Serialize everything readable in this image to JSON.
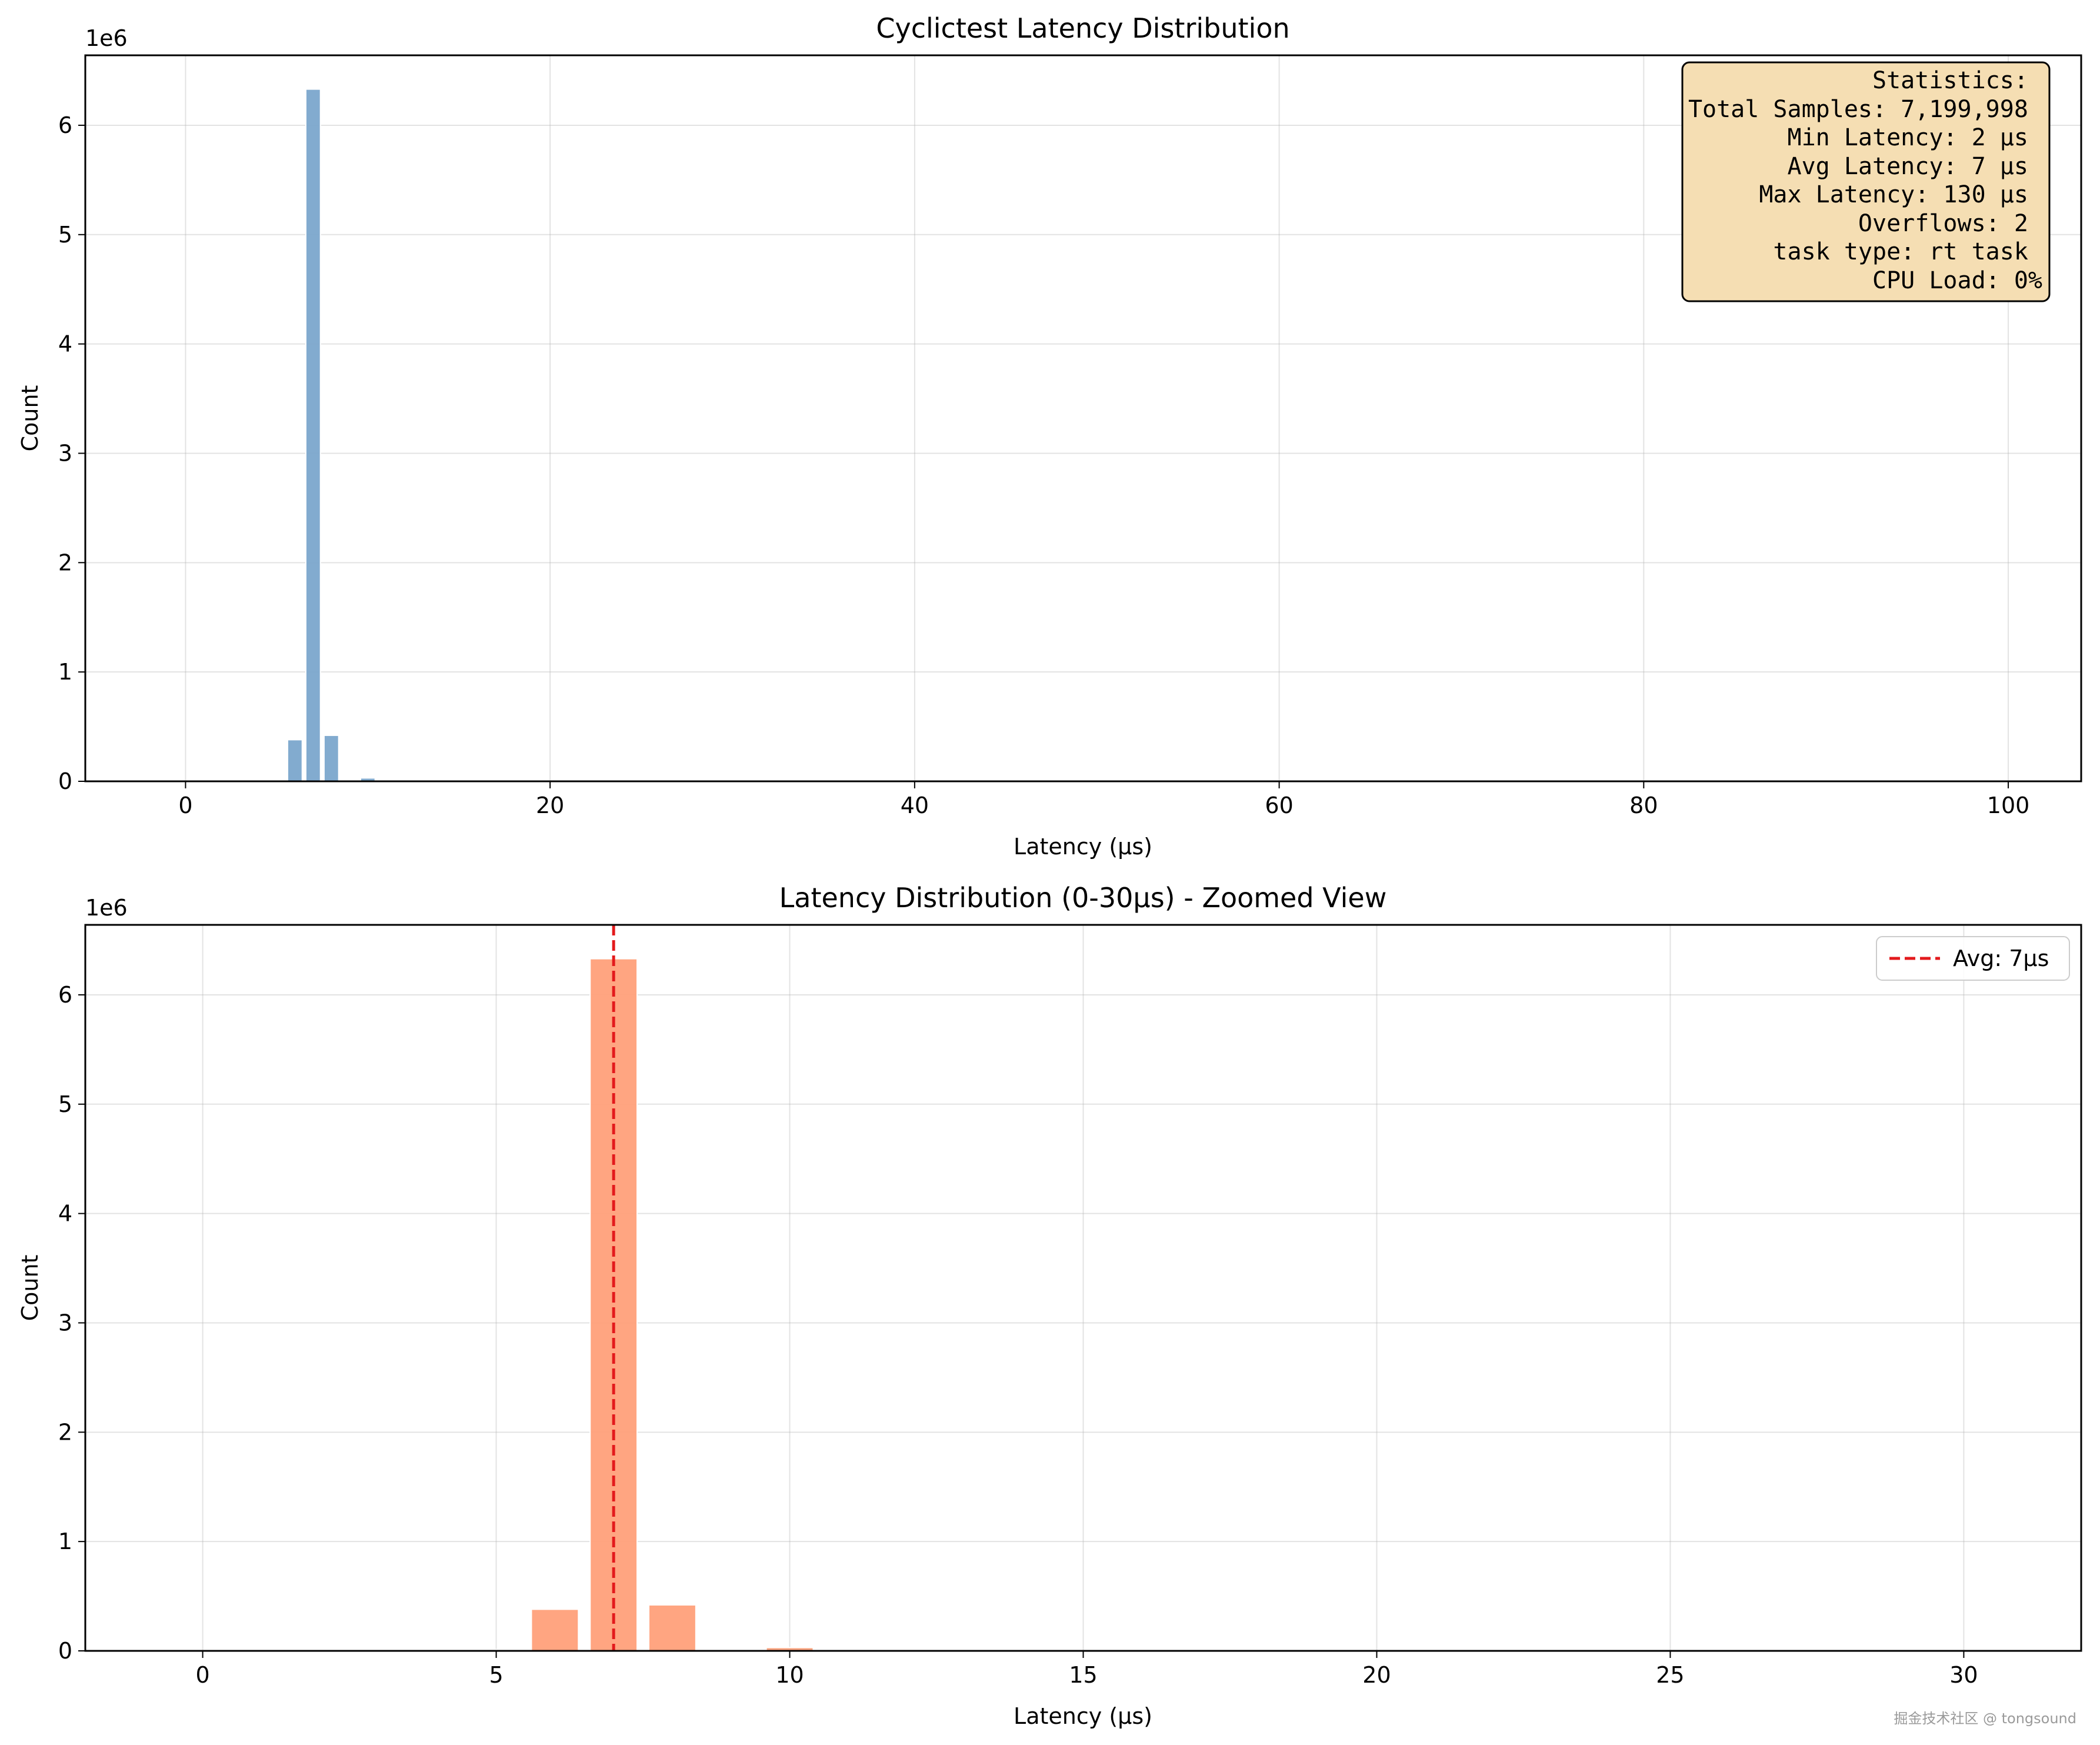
{
  "chart_data": [
    {
      "type": "bar",
      "title": "Cyclictest Latency Distribution",
      "xlabel": "Latency (µs)",
      "ylabel": "Count",
      "y_scale_label": "1e6",
      "xlim": [
        -5.5,
        104
      ],
      "ylim": [
        0,
        6640000
      ],
      "xticks": [
        0,
        20,
        40,
        60,
        80,
        100
      ],
      "yticks": [
        0,
        1,
        2,
        3,
        4,
        5,
        6
      ],
      "grid": true,
      "bar_color": "#7ba7cc",
      "x": [
        4,
        5,
        6,
        7,
        8,
        9,
        10
      ],
      "values": [
        5000,
        12000,
        380000,
        6330000,
        420000,
        8000,
        30000
      ],
      "stats_box": {
        "lines": [
          "Statistics:",
          "Total Samples: 7,199,998",
          "Min Latency: 2 µs",
          "Avg Latency: 7 µs",
          "Max Latency: 130 µs",
          "Overflows: 2",
          "task type: rt task",
          "CPU Load: 0%"
        ],
        "placement": "top-right",
        "face_color": "#f5deb3"
      }
    },
    {
      "type": "bar",
      "title": "Latency Distribution (0-30µs) - Zoomed View",
      "xlabel": "Latency (µs)",
      "ylabel": "Count",
      "y_scale_label": "1e6",
      "xlim": [
        -2,
        32
      ],
      "ylim": [
        0,
        6640000
      ],
      "xticks": [
        0,
        5,
        10,
        15,
        20,
        25,
        30
      ],
      "yticks": [
        0,
        1,
        2,
        3,
        4,
        5,
        6
      ],
      "grid": true,
      "bar_color": "#ffa07a",
      "x": [
        4,
        5,
        6,
        7,
        8,
        9,
        10
      ],
      "values": [
        5000,
        12000,
        380000,
        6330000,
        420000,
        8000,
        30000
      ],
      "avg_line": {
        "x": 7,
        "color": "#e31a1c",
        "label": "Avg: 7µs"
      },
      "legend": "top-right"
    }
  ],
  "watermark": "掘金技术社区 @ tongsound"
}
